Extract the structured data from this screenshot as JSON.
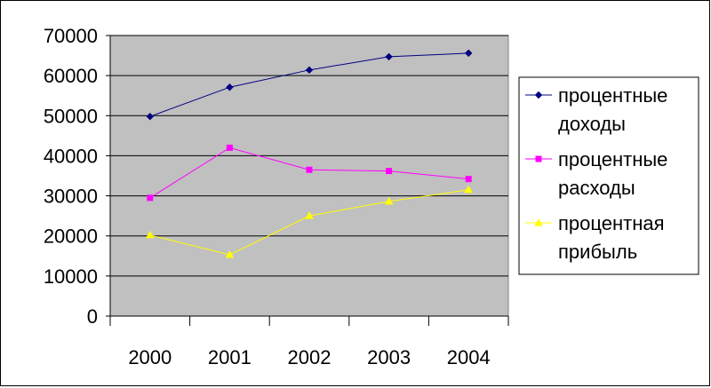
{
  "chart_data": {
    "type": "line",
    "categories": [
      "2000",
      "2001",
      "2002",
      "2003",
      "2004"
    ],
    "series": [
      {
        "name": "процентные доходы",
        "name_lines": [
          "процентные",
          "доходы"
        ],
        "color": "#000080",
        "marker": "diamond",
        "values": [
          49800,
          57100,
          61400,
          64700,
          65600
        ]
      },
      {
        "name": "процентные расходы",
        "name_lines": [
          "процентные",
          "расходы"
        ],
        "color": "#ff00ff",
        "marker": "square",
        "values": [
          29500,
          42000,
          36500,
          36200,
          34200
        ]
      },
      {
        "name": "процентная прибыль",
        "name_lines": [
          "процентная",
          "прибыль"
        ],
        "color": "#ffff00",
        "marker": "triangle",
        "values": [
          20200,
          15300,
          25000,
          28600,
          31500
        ]
      }
    ],
    "y_ticks": [
      "0",
      "10000",
      "20000",
      "30000",
      "40000",
      "50000",
      "60000",
      "70000"
    ],
    "ylim": [
      0,
      70000
    ],
    "grid": true,
    "plot_background": "#c0c0c0",
    "legend_position": "right"
  }
}
